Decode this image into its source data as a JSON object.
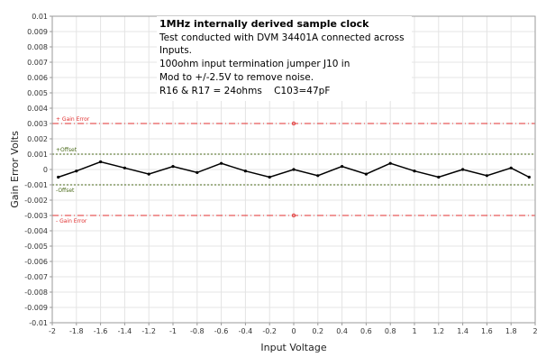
{
  "chart_data": {
    "type": "line",
    "xlabel": "Input Voltage",
    "ylabel": "Gain Error Volts",
    "xlim": [
      -2,
      2
    ],
    "ylim": [
      -0.01,
      0.01
    ],
    "x_ticks": [
      -2,
      -1.8,
      -1.6,
      -1.4,
      -1.2,
      -1,
      -0.8,
      -0.6,
      -0.4,
      -0.2,
      0,
      0.2,
      0.4,
      0.6,
      0.8,
      1,
      1.2,
      1.4,
      1.6,
      1.8,
      2
    ],
    "y_ticks": [
      0.01,
      0.009,
      0.008,
      0.007,
      0.006,
      0.005,
      0.004,
      0.003,
      0.002,
      0.001,
      0,
      -0.001,
      -0.002,
      -0.003,
      -0.004,
      -0.005,
      -0.006,
      -0.007,
      -0.008,
      -0.009,
      -0.01
    ],
    "grid": true,
    "series": [
      {
        "x": [
          -1.95,
          -1.8,
          -1.6,
          -1.4,
          -1.2,
          -1,
          -0.8,
          -0.6,
          -0.4,
          -0.2,
          0,
          0.2,
          0.4,
          0.6,
          0.8,
          1,
          1.2,
          1.4,
          1.6,
          1.8,
          1.95
        ],
        "values": [
          -0.0005,
          -0.0001,
          0.0005,
          0.0001,
          -0.0003,
          0.0002,
          -0.0002,
          0.0004,
          -0.0001,
          -0.0005,
          0.0,
          -0.0004,
          0.0002,
          -0.0003,
          0.0004,
          -0.0001,
          -0.0005,
          0.0,
          -0.0004,
          0.0001,
          -0.0005
        ],
        "color": "#000000"
      }
    ],
    "reference_lines": [
      {
        "y": 0.003,
        "label": "+ Gain Error",
        "color": "#e03030",
        "style": "dash-dot"
      },
      {
        "y": 0.001,
        "label": "+Offset",
        "color": "#4a6a1a",
        "style": "dotted"
      },
      {
        "y": -0.001,
        "label": "-Offset",
        "color": "#4a6a1a",
        "style": "dotted"
      },
      {
        "y": -0.003,
        "label": "- Gain Error",
        "color": "#e03030",
        "style": "dash-dot"
      }
    ],
    "annotation": {
      "title": "1MHz internally derived sample clock",
      "lines": [
        "Test conducted with DVM 34401A connected across",
        "Inputs.",
        "100ohm input termination jumper J10 in",
        "Mod to +/-2.5V to remove noise.",
        "R16 & R17 = 24ohms    C103=47pF"
      ]
    }
  }
}
